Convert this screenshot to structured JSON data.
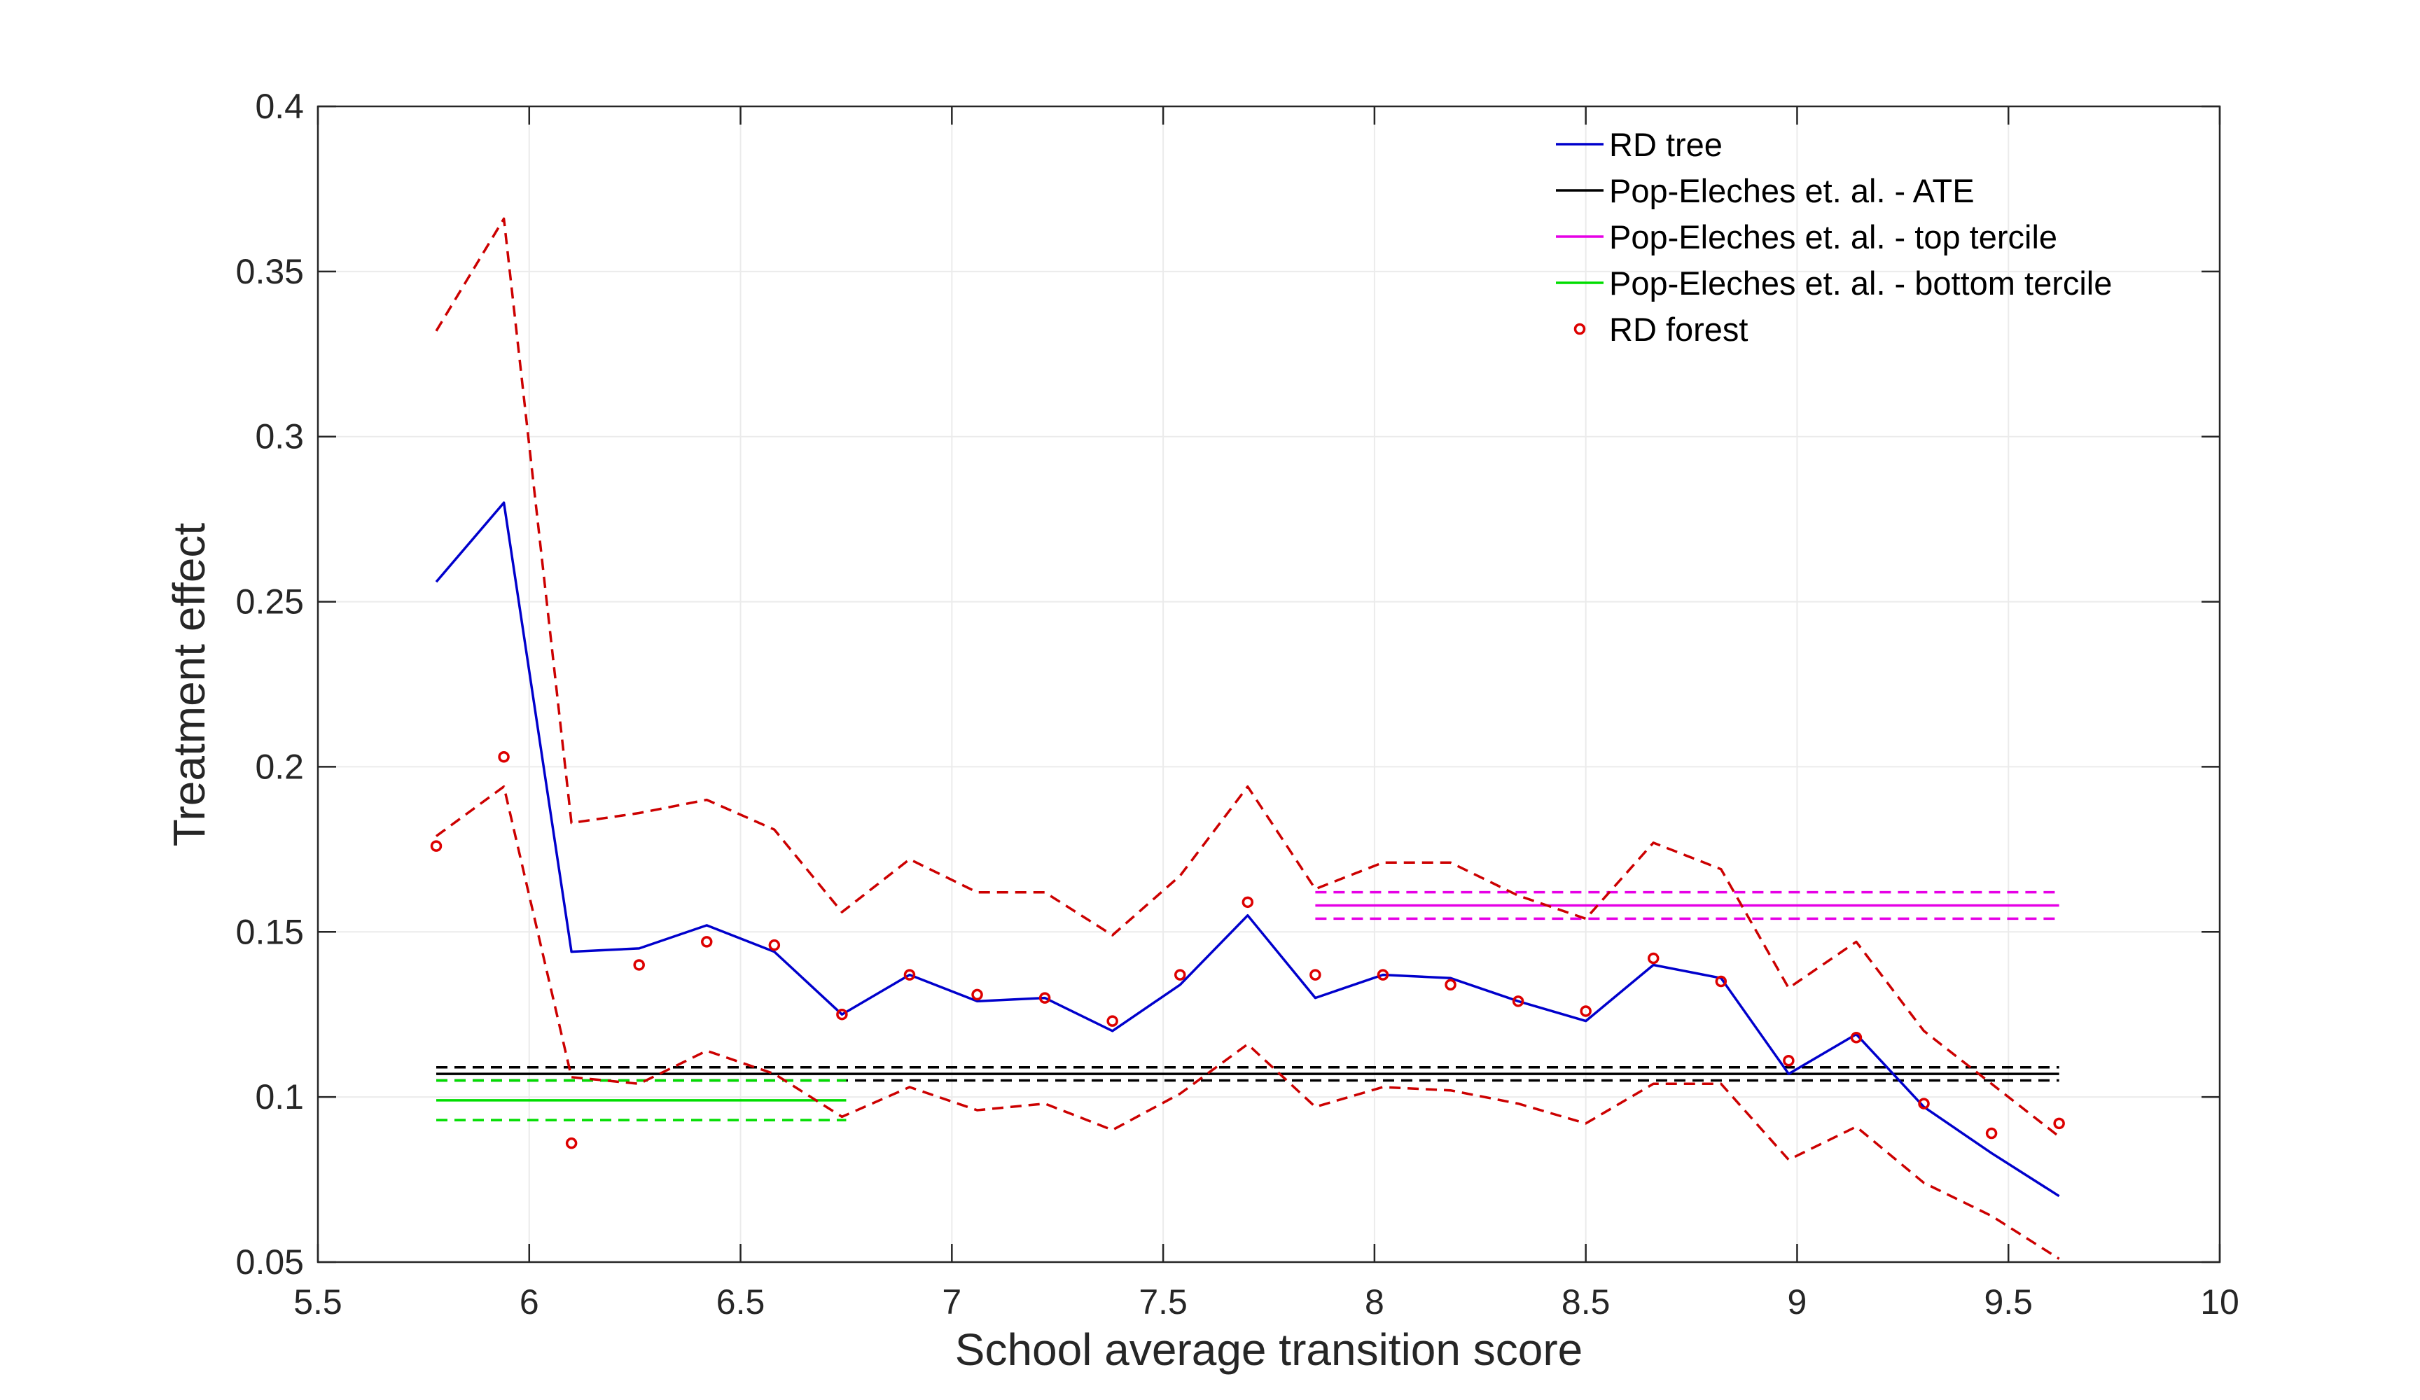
{
  "chart_data": {
    "type": "line",
    "title": "",
    "xlabel": "School average transition score",
    "ylabel": "Treatment effect",
    "xlim": [
      5.5,
      10
    ],
    "ylim": [
      0.05,
      0.4
    ],
    "xticks": [
      5.5,
      6,
      6.5,
      7,
      7.5,
      8,
      8.5,
      9,
      9.5,
      10
    ],
    "xtick_labels": [
      "5.5",
      "6",
      "6.5",
      "7",
      "7.5",
      "8",
      "8.5",
      "9",
      "9.5",
      "10"
    ],
    "yticks": [
      0.05,
      0.1,
      0.15,
      0.2,
      0.25,
      0.3,
      0.35,
      0.4
    ],
    "ytick_labels": [
      "0.05",
      "0.1",
      "0.15",
      "0.2",
      "0.25",
      "0.3",
      "0.35",
      "0.4"
    ],
    "grid": true,
    "legend_position": "top-right",
    "x": [
      5.78,
      5.94,
      6.1,
      6.26,
      6.42,
      6.58,
      6.74,
      6.9,
      7.06,
      7.22,
      7.38,
      7.54,
      7.7,
      7.86,
      8.02,
      8.18,
      8.34,
      8.5,
      8.66,
      8.82,
      8.98,
      9.14,
      9.3,
      9.46,
      9.62
    ],
    "series": [
      {
        "name": "RD tree",
        "style": "solid",
        "color": "#0000cc",
        "values": [
          0.256,
          0.28,
          0.144,
          0.145,
          0.152,
          0.144,
          0.125,
          0.137,
          0.129,
          0.13,
          0.12,
          0.134,
          0.155,
          0.13,
          0.137,
          0.136,
          0.129,
          0.123,
          0.14,
          0.136,
          0.107,
          0.119,
          0.097,
          0.083,
          0.07
        ]
      },
      {
        "name": "RD tree upper CI",
        "style": "dashed",
        "color": "#cc0000",
        "values": [
          0.332,
          0.366,
          0.183,
          0.186,
          0.19,
          0.181,
          0.156,
          0.172,
          0.162,
          0.162,
          0.149,
          0.167,
          0.194,
          0.163,
          0.171,
          0.171,
          0.161,
          0.154,
          0.177,
          0.169,
          0.133,
          0.147,
          0.12,
          0.104,
          0.088
        ]
      },
      {
        "name": "RD tree lower CI",
        "style": "dashed",
        "color": "#cc0000",
        "values": [
          0.179,
          0.194,
          0.106,
          0.104,
          0.114,
          0.107,
          0.094,
          0.103,
          0.096,
          0.098,
          0.09,
          0.101,
          0.116,
          0.097,
          0.103,
          0.102,
          0.098,
          0.092,
          0.104,
          0.104,
          0.081,
          0.091,
          0.074,
          0.064,
          0.051
        ]
      },
      {
        "name": "RD forest",
        "style": "markers",
        "color": "#dd0000",
        "values": [
          0.176,
          0.203,
          0.086,
          0.14,
          0.147,
          0.146,
          0.125,
          0.137,
          0.131,
          0.13,
          0.123,
          0.137,
          0.159,
          0.137,
          0.137,
          0.134,
          0.129,
          0.126,
          0.142,
          0.135,
          0.111,
          0.118,
          0.098,
          0.089,
          0.092
        ]
      }
    ],
    "reference_lines": [
      {
        "name": "Pop-Eleches et. al. - ATE",
        "color": "#000000",
        "x_range": [
          5.78,
          9.62
        ],
        "value": 0.107,
        "ci": [
          0.105,
          0.109
        ]
      },
      {
        "name": "Pop-Eleches et. al. - top tercile",
        "color": "#e600e6",
        "x_range": [
          7.86,
          9.62
        ],
        "value": 0.158,
        "ci": [
          0.154,
          0.162
        ]
      },
      {
        "name": "Pop-Eleches et. al. - bottom tercile",
        "color": "#00dd00",
        "x_range": [
          5.78,
          6.75
        ],
        "value": 0.099,
        "ci": [
          0.093,
          0.105
        ]
      }
    ],
    "legend": [
      {
        "label": "RD tree",
        "kind": "line",
        "color": "#0000cc"
      },
      {
        "label": "Pop-Eleches et. al. - ATE",
        "kind": "line",
        "color": "#000000"
      },
      {
        "label": "Pop-Eleches et. al. - top tercile",
        "kind": "line",
        "color": "#e600e6"
      },
      {
        "label": "Pop-Eleches et. al. - bottom tercile",
        "kind": "line",
        "color": "#00dd00"
      },
      {
        "label": "RD forest",
        "kind": "marker",
        "color": "#dd0000"
      }
    ]
  }
}
